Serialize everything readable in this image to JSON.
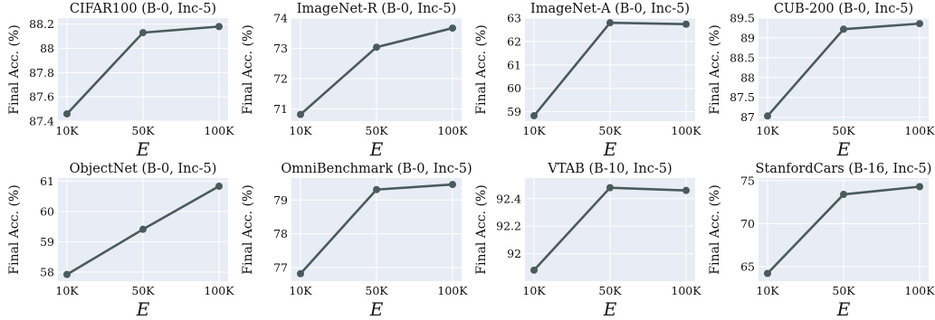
{
  "chart_data": [
    {
      "type": "line",
      "title": "CIFAR100 (B-0, Inc-5)",
      "xlabel": "E",
      "ylabel": "Final Acc. (%)",
      "categories": [
        "10K",
        "50K",
        "100K"
      ],
      "values": [
        87.46,
        88.13,
        88.18
      ],
      "ylim": [
        87.4,
        88.25
      ],
      "yticks": [
        87.4,
        87.6,
        87.8,
        88,
        88.2
      ],
      "ytick_labels": [
        "87.4",
        "87.6",
        "87.8",
        "88",
        "88.2"
      ],
      "grid": true
    },
    {
      "type": "line",
      "title": "ImageNet-R (B-0, Inc-5)",
      "xlabel": "E",
      "ylabel": "Final Acc. (%)",
      "categories": [
        "10K",
        "50K",
        "100K"
      ],
      "values": [
        70.82,
        73.04,
        73.67
      ],
      "ylim": [
        70.6,
        74.0
      ],
      "yticks": [
        71,
        72,
        73,
        74
      ],
      "ytick_labels": [
        "71",
        "72",
        "73",
        "74"
      ],
      "grid": true
    },
    {
      "type": "line",
      "title": "ImageNet-A (B-0, Inc-5)",
      "xlabel": "E",
      "ylabel": "Final Acc. (%)",
      "categories": [
        "10K",
        "50K",
        "100K"
      ],
      "values": [
        58.83,
        62.8,
        62.74
      ],
      "ylim": [
        58.6,
        63.0
      ],
      "yticks": [
        59,
        60,
        61,
        62,
        63
      ],
      "ytick_labels": [
        "59",
        "60",
        "61",
        "62",
        "63"
      ],
      "grid": true
    },
    {
      "type": "line",
      "title": "CUB-200 (B-0, Inc-5)",
      "xlabel": "E",
      "ylabel": "Final Acc. (%)",
      "categories": [
        "10K",
        "50K",
        "100K"
      ],
      "values": [
        87.03,
        89.22,
        89.36
      ],
      "ylim": [
        86.9,
        89.5
      ],
      "yticks": [
        87,
        87.5,
        88,
        88.5,
        89,
        89.5
      ],
      "ytick_labels": [
        "87",
        "87.5",
        "88",
        "88.5",
        "89",
        "89.5"
      ],
      "grid": true
    },
    {
      "type": "line",
      "title": "ObjectNet (B-0, Inc-5)",
      "xlabel": "E",
      "ylabel": "Final Acc. (%)",
      "categories": [
        "10K",
        "50K",
        "100K"
      ],
      "values": [
        57.92,
        59.41,
        60.83
      ],
      "ylim": [
        57.7,
        61.1
      ],
      "yticks": [
        58,
        59,
        60,
        61
      ],
      "ytick_labels": [
        "58",
        "59",
        "60",
        "61"
      ],
      "grid": true
    },
    {
      "type": "line",
      "title": "OmniBenchmark (B-0, Inc-5)",
      "xlabel": "E",
      "ylabel": "Final Acc. (%)",
      "categories": [
        "10K",
        "50K",
        "100K"
      ],
      "values": [
        76.82,
        79.31,
        79.46
      ],
      "ylim": [
        76.6,
        79.65
      ],
      "yticks": [
        77,
        78,
        79
      ],
      "ytick_labels": [
        "77",
        "78",
        "79"
      ],
      "grid": true
    },
    {
      "type": "line",
      "title": "VTAB (B-10, Inc-5)",
      "xlabel": "E",
      "ylabel": "Final Acc. (%)",
      "categories": [
        "10K",
        "50K",
        "100K"
      ],
      "values": [
        91.88,
        92.48,
        92.46
      ],
      "ylim": [
        91.8,
        92.55
      ],
      "yticks": [
        92,
        92.2,
        92.4
      ],
      "ytick_labels": [
        "92",
        "92.2",
        "92.4"
      ],
      "grid": true
    },
    {
      "type": "line",
      "title": "StanfordCars (B-16, Inc-5)",
      "xlabel": "E",
      "ylabel": "Final Acc. (%)",
      "categories": [
        "10K",
        "50K",
        "100K"
      ],
      "values": [
        64.2,
        73.4,
        74.3
      ],
      "ylim": [
        63.3,
        75.3
      ],
      "yticks": [
        65,
        70,
        75
      ],
      "ytick_labels": [
        "65",
        "70",
        "75"
      ],
      "grid": true
    }
  ]
}
